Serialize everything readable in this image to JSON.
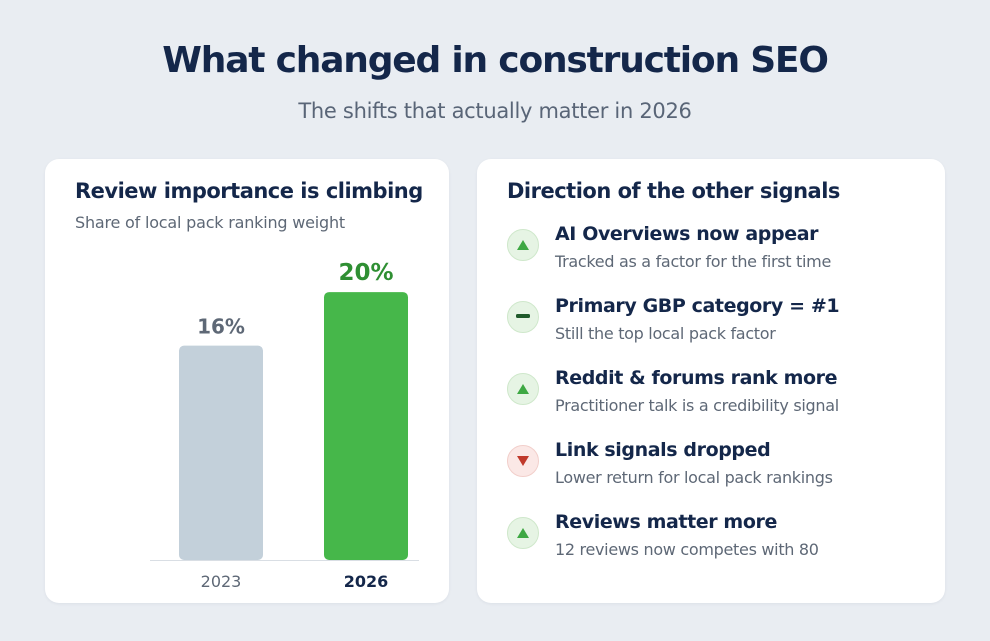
{
  "header": {
    "title": "What changed in construction SEO",
    "subtitle": "The shifts that actually matter in 2026"
  },
  "left_card": {
    "title": "Review importance is climbing",
    "subtitle": "Share of local pack ranking weight"
  },
  "chart_data": {
    "type": "bar",
    "title": "Review importance is climbing",
    "subtitle": "Share of local pack ranking weight",
    "categories": [
      "2023",
      "2026"
    ],
    "values": [
      16,
      20
    ],
    "data_labels": [
      "16%",
      "20%"
    ],
    "unit": "%",
    "ylim": [
      0,
      21.5
    ],
    "grid": false,
    "colors": [
      "#c3d0da",
      "#46b74a"
    ],
    "label_colors": [
      "#5e6876",
      "#2f8f33"
    ],
    "highlight_category": "2026"
  },
  "right_card": {
    "title": "Direction of the other signals",
    "signals": [
      {
        "heading": "AI Overviews now appear",
        "description": "Tracked as a factor for the first time",
        "direction": "up",
        "icon": "triangle-up-icon"
      },
      {
        "heading": "Primary GBP category = #1",
        "description": "Still the top local pack factor",
        "direction": "flat",
        "icon": "dash-icon"
      },
      {
        "heading": "Reddit & forums rank more",
        "description": "Practitioner talk is a credibility signal",
        "direction": "up",
        "icon": "triangle-up-icon"
      },
      {
        "heading": "Link signals dropped",
        "description": "Lower return for local pack rankings",
        "direction": "down",
        "icon": "triangle-down-icon"
      },
      {
        "heading": "Reviews matter more",
        "description": "12 reviews now competes with 80",
        "direction": "up",
        "icon": "triangle-up-icon"
      }
    ]
  },
  "colors": {
    "up": "#3ea843",
    "flat": "#1f5a2a",
    "down": "#c0392b"
  }
}
